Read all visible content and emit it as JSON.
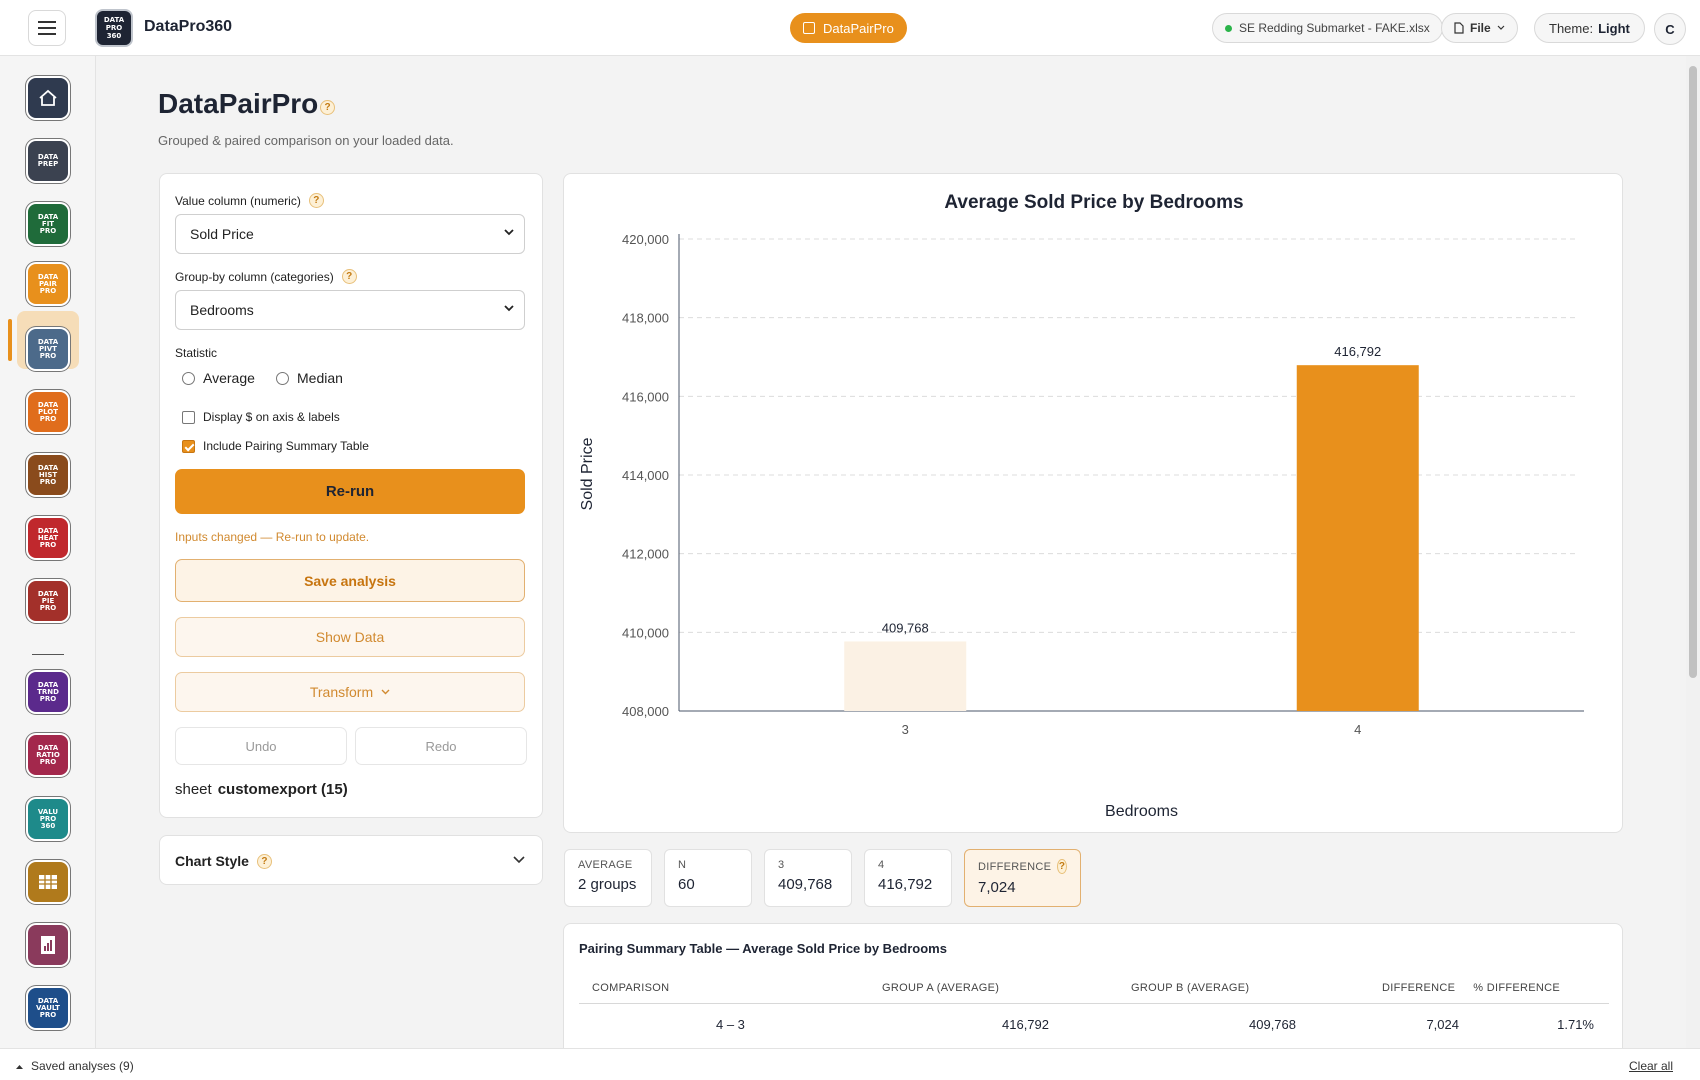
{
  "app": {
    "name": "DataPro360",
    "logo_lines": [
      "DATA",
      "PRO",
      "360"
    ]
  },
  "header": {
    "active_tool": "DataPairPro",
    "file_name": "SE Redding Submarket - FAKE.xlsx",
    "file_menu": "File",
    "theme_label": "Theme:",
    "theme_value": "Light",
    "user_initial": "C"
  },
  "sidebar": {
    "items": [
      {
        "name": "home",
        "lines": [
          ""
        ],
        "color": "#2f3a4f"
      },
      {
        "name": "data-prep-pro",
        "lines": [
          "DATA",
          "PREP"
        ],
        "color": "#3b4250"
      },
      {
        "name": "data-fit-pro",
        "lines": [
          "DATA",
          "FIT",
          "PRO"
        ],
        "color": "#1f6b3a"
      },
      {
        "name": "data-pair-pro",
        "lines": [
          "DATA",
          "PAIR",
          "PRO"
        ],
        "color": "#e8901c"
      },
      {
        "name": "data-pivt-pro",
        "lines": [
          "DATA",
          "PIVT",
          "PRO"
        ],
        "color": "#4c6a8a"
      },
      {
        "name": "data-plot-pro",
        "lines": [
          "DATA",
          "PLOT",
          "PRO"
        ],
        "color": "#e06d1c"
      },
      {
        "name": "data-hist-pro",
        "lines": [
          "DATA",
          "HIST",
          "PRO"
        ],
        "color": "#8a4b1c"
      },
      {
        "name": "data-heat-pro",
        "lines": [
          "DATA",
          "HEAT",
          "PRO"
        ],
        "color": "#c0282d"
      },
      {
        "name": "data-pie-pro",
        "lines": [
          "DATA",
          "PIE",
          "PRO"
        ],
        "color": "#a3302a"
      },
      {
        "name": "data-trnd-pro",
        "lines": [
          "DATA",
          "TRND",
          "PRO"
        ],
        "color": "#5b2a8c"
      },
      {
        "name": "data-ratio-pro",
        "lines": [
          "DATA",
          "RATIO",
          "PRO"
        ],
        "color": "#a3284c"
      },
      {
        "name": "valu-pro-360",
        "lines": [
          "VALU",
          "PRO",
          "360"
        ],
        "color": "#1e8a8a"
      },
      {
        "name": "table-tool",
        "lines": [
          ""
        ],
        "color": "#b07a1c"
      },
      {
        "name": "report-tool",
        "lines": [
          ""
        ],
        "color": "#8a3a5c"
      },
      {
        "name": "data-vault-pro",
        "lines": [
          "DATA",
          "VAULT",
          "PRO"
        ],
        "color": "#1e4e8a"
      }
    ]
  },
  "page": {
    "title": "DataPairPro",
    "subtitle": "Grouped & paired comparison on your loaded data."
  },
  "controls": {
    "value_column_label": "Value column (numeric)",
    "value_column": "Sold Price",
    "group_column_label": "Group-by column (categories)",
    "group_column": "Bedrooms",
    "statistic_label": "Statistic",
    "stat_options": [
      "Average",
      "Median"
    ],
    "display_dollar_label": "Display $ on axis & labels",
    "display_dollar_checked": false,
    "include_table_label": "Include Pairing Summary Table",
    "include_table_checked": true,
    "rerun_label": "Re-run",
    "warning": "Inputs changed — Re-run to update.",
    "save_label": "Save analysis",
    "show_data_label": "Show Data",
    "transform_label": "Transform",
    "undo_label": "Undo",
    "redo_label": "Redo",
    "sheet_prefix": "sheet",
    "sheet_name": "customexport (15)",
    "chart_style_label": "Chart Style"
  },
  "chart_data": {
    "type": "bar",
    "title": "Average Sold Price by Bedrooms",
    "xlabel": "Bedrooms",
    "ylabel": "Sold Price",
    "categories": [
      "3",
      "4"
    ],
    "values": [
      409768,
      416792
    ],
    "value_labels": [
      "409,768",
      "416,792"
    ],
    "bar_colors": [
      "#fbf1e4",
      "#e8901c"
    ],
    "ylim": [
      408000,
      420000
    ],
    "yticks": [
      408000,
      410000,
      412000,
      414000,
      416000,
      418000,
      420000
    ],
    "ytick_labels": [
      "408,000",
      "410,000",
      "412,000",
      "414,000",
      "416,000",
      "418,000",
      "420,000"
    ],
    "grid": true
  },
  "stats": [
    {
      "key": "AVERAGE",
      "value": "2 groups"
    },
    {
      "key": "N",
      "value": "60"
    },
    {
      "key": "3",
      "value": "409,768"
    },
    {
      "key": "4",
      "value": "416,792"
    },
    {
      "key": "DIFFERENCE",
      "value": "7,024"
    }
  ],
  "table": {
    "title": "Pairing Summary Table — Average Sold Price by Bedrooms",
    "headers": [
      "COMPARISON",
      "GROUP A (AVERAGE)",
      "GROUP B (AVERAGE)",
      "DIFFERENCE",
      "% DIFFERENCE"
    ],
    "rows": [
      [
        "4 – 3",
        "416,792",
        "409,768",
        "7,024",
        "1.71%"
      ]
    ]
  },
  "footer": {
    "saved_label": "Saved analyses (9)",
    "clear_label": "Clear all"
  }
}
